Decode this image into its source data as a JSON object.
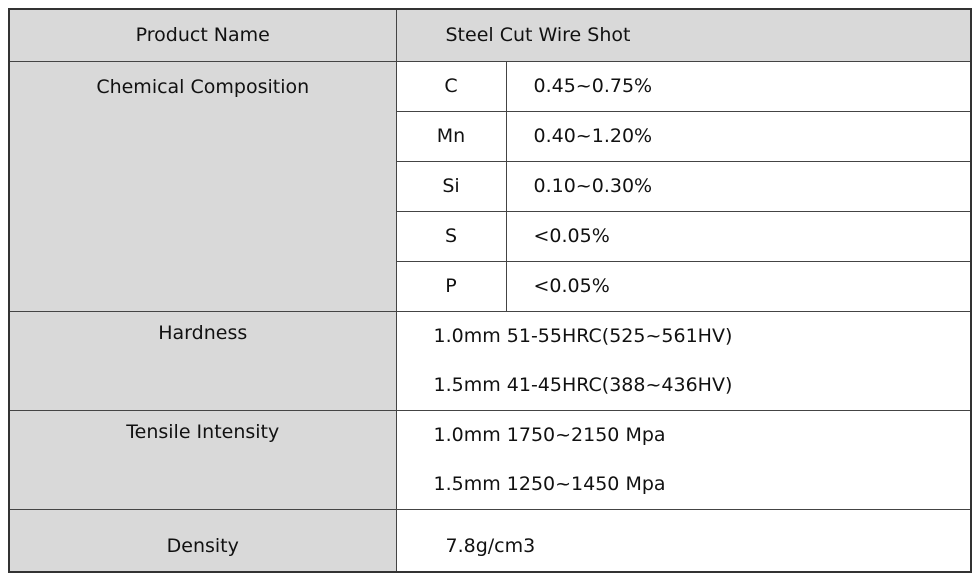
{
  "header": {
    "label": "Product Name",
    "value": "Steel Cut Wire Shot"
  },
  "composition": {
    "label": "Chemical Composition",
    "rows": [
      [
        "C",
        "0.45~0.75%"
      ],
      [
        "Mn",
        "0.40~1.20%"
      ],
      [
        "Si",
        "0.10~0.30%"
      ],
      [
        "S",
        "<0.05%"
      ],
      [
        "P",
        "<0.05%"
      ]
    ]
  },
  "hardness": {
    "label": "Hardness",
    "lines": [
      "1.0mm 51-55HRC(525~561HV)",
      "1.5mm 41-45HRC(388~436HV)"
    ]
  },
  "tensile": {
    "label": "Tensile Intensity",
    "lines": [
      "1.0mm 1750~2150 Mpa",
      "1.5mm 1250~1450 Mpa"
    ]
  },
  "density": {
    "label": "Density",
    "value": "7.8g/cm3"
  }
}
